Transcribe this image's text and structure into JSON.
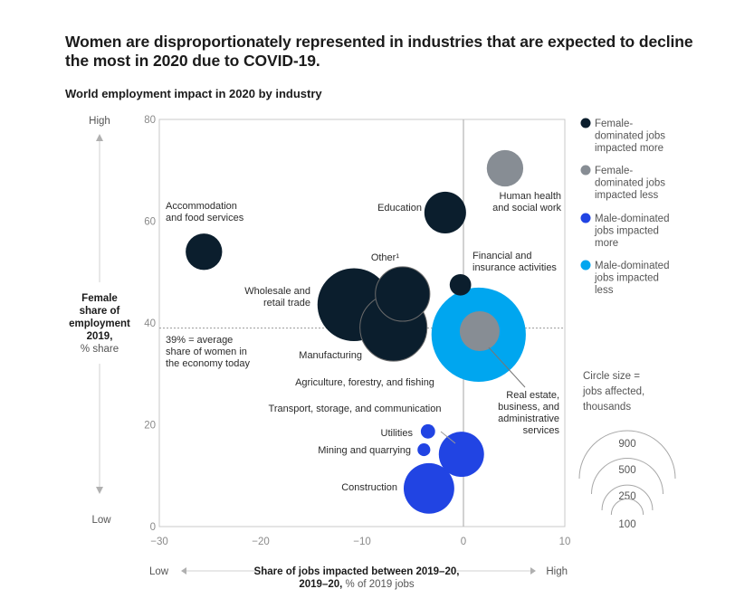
{
  "title": "Women are disproportionately represented in industries that are expected to decline the most in 2020 due to COVID-19.",
  "subtitle": "World employment impact in 2020 by industry",
  "colors": {
    "female_more": "#0b1e2d",
    "female_less": "#878d94",
    "male_more": "#2144e3",
    "male_less": "#00a6ef",
    "axis": "#c8c8c8",
    "text": "#2b2b2b"
  },
  "chart_data": {
    "type": "scatter",
    "subtype": "bubble",
    "title": "World employment impact in 2020 by industry",
    "xlabel": "Share of jobs impacted between 2019–20, % of 2019 jobs",
    "xlabel_bold": "Share of jobs impacted between 2019–20,",
    "xlabel_light": "% of 2019 jobs",
    "ylabel_bold": [
      "Female",
      "share of",
      "employment",
      "2019,"
    ],
    "ylabel_light": "% share",
    "xlim": [
      -30,
      10
    ],
    "ylim": [
      0,
      80
    ],
    "xticks": [
      -30,
      -20,
      -10,
      0,
      10
    ],
    "xtick_labels": [
      "−30",
      "−20",
      "−10",
      "0",
      "10"
    ],
    "yticks": [
      0,
      20,
      40,
      60,
      80
    ],
    "ytick_labels": [
      "0",
      "20",
      "40",
      "60",
      "80"
    ],
    "x_low_label": "Low",
    "x_high_label": "High",
    "y_low_label": "Low",
    "y_high_label": "High",
    "reference_line": {
      "y": 39,
      "label": [
        "39% = average",
        "share of women in",
        "the economy today"
      ]
    },
    "grid": false,
    "legend_position": "right",
    "legend": [
      {
        "key": "female_more",
        "label": [
          "Female-",
          "dominated jobs",
          "impacted more"
        ]
      },
      {
        "key": "female_less",
        "label": [
          "Female-",
          "dominated jobs",
          "impacted less"
        ]
      },
      {
        "key": "male_more",
        "label": [
          "Male-dominated",
          "jobs impacted",
          "more"
        ]
      },
      {
        "key": "male_less",
        "label": [
          "Male-dominated",
          "jobs impacted",
          "less"
        ]
      }
    ],
    "size_legend": {
      "title": [
        "Circle size =",
        "jobs affected,",
        "thousands"
      ],
      "values": [
        900,
        500,
        250,
        100
      ]
    },
    "series": [
      {
        "name": "Agriculture, forestry, and fishing",
        "category": "male_less",
        "x": 1.5,
        "y": 37.7,
        "size": 870
      },
      {
        "name": "Wholesale and retail trade",
        "category": "female_more",
        "x": -10.8,
        "y": 43.6,
        "size": 520
      },
      {
        "name": "Manufacturing",
        "category": "female_more",
        "x": -6.9,
        "y": 39.1,
        "size": 440
      },
      {
        "name": "Other",
        "category": "female_more",
        "x": -6.0,
        "y": 45.7,
        "size": 290,
        "footnote": "1"
      },
      {
        "name": "Construction",
        "category": "male_more",
        "x": -3.4,
        "y": 7.5,
        "size": 250
      },
      {
        "name": "Transport, storage, and communication",
        "category": "male_more",
        "x": -0.2,
        "y": 14.2,
        "size": 200
      },
      {
        "name": "Education",
        "category": "female_more",
        "x": -1.8,
        "y": 61.7,
        "size": 170
      },
      {
        "name": "Real estate, business, and administrative services",
        "category": "female_less",
        "x": 1.6,
        "y": 38.4,
        "size": 155
      },
      {
        "name": "Accommodation and food services",
        "category": "female_more",
        "x": -25.6,
        "y": 54.0,
        "size": 130
      },
      {
        "name": "Human health and social work",
        "category": "female_less",
        "x": 4.1,
        "y": 70.4,
        "size": 130
      },
      {
        "name": "Financial and insurance activities",
        "category": "female_more",
        "x": -0.3,
        "y": 47.5,
        "size": 45
      },
      {
        "name": "Utilities",
        "category": "male_more",
        "x": -3.5,
        "y": 18.7,
        "size": 20
      },
      {
        "name": "Mining and quarrying",
        "category": "male_more",
        "x": -3.9,
        "y": 15.1,
        "size": 16
      }
    ],
    "annotations": [
      {
        "series": "Accommodation and food services",
        "lines": [
          "Accommodation",
          "and food services"
        ]
      },
      {
        "series": "Education",
        "lines": [
          "Education"
        ]
      },
      {
        "series": "Human health and social work",
        "lines": [
          "Human health",
          "and social work"
        ]
      },
      {
        "series": "Financial and insurance activities",
        "lines": [
          "Financial and",
          "insurance activities"
        ]
      },
      {
        "series": "Other",
        "lines": [
          "Other¹"
        ]
      },
      {
        "series": "Wholesale and retail trade",
        "lines": [
          "Wholesale and",
          "retail trade"
        ]
      },
      {
        "series": "Manufacturing",
        "lines": [
          "Manufacturing"
        ]
      },
      {
        "series": "Agriculture, forestry, and fishing",
        "lines": [
          "Agriculture, forestry, and fishing"
        ]
      },
      {
        "series": "Real estate, business, and administrative services",
        "lines": [
          "Real estate,",
          "business, and",
          "administrative",
          "services"
        ]
      },
      {
        "series": "Transport, storage, and communication",
        "lines": [
          "Transport, storage, and communication"
        ]
      },
      {
        "series": "Utilities",
        "lines": [
          "Utilities"
        ]
      },
      {
        "series": "Mining and quarrying",
        "lines": [
          "Mining and quarrying"
        ]
      },
      {
        "series": "Construction",
        "lines": [
          "Construction"
        ]
      }
    ]
  }
}
